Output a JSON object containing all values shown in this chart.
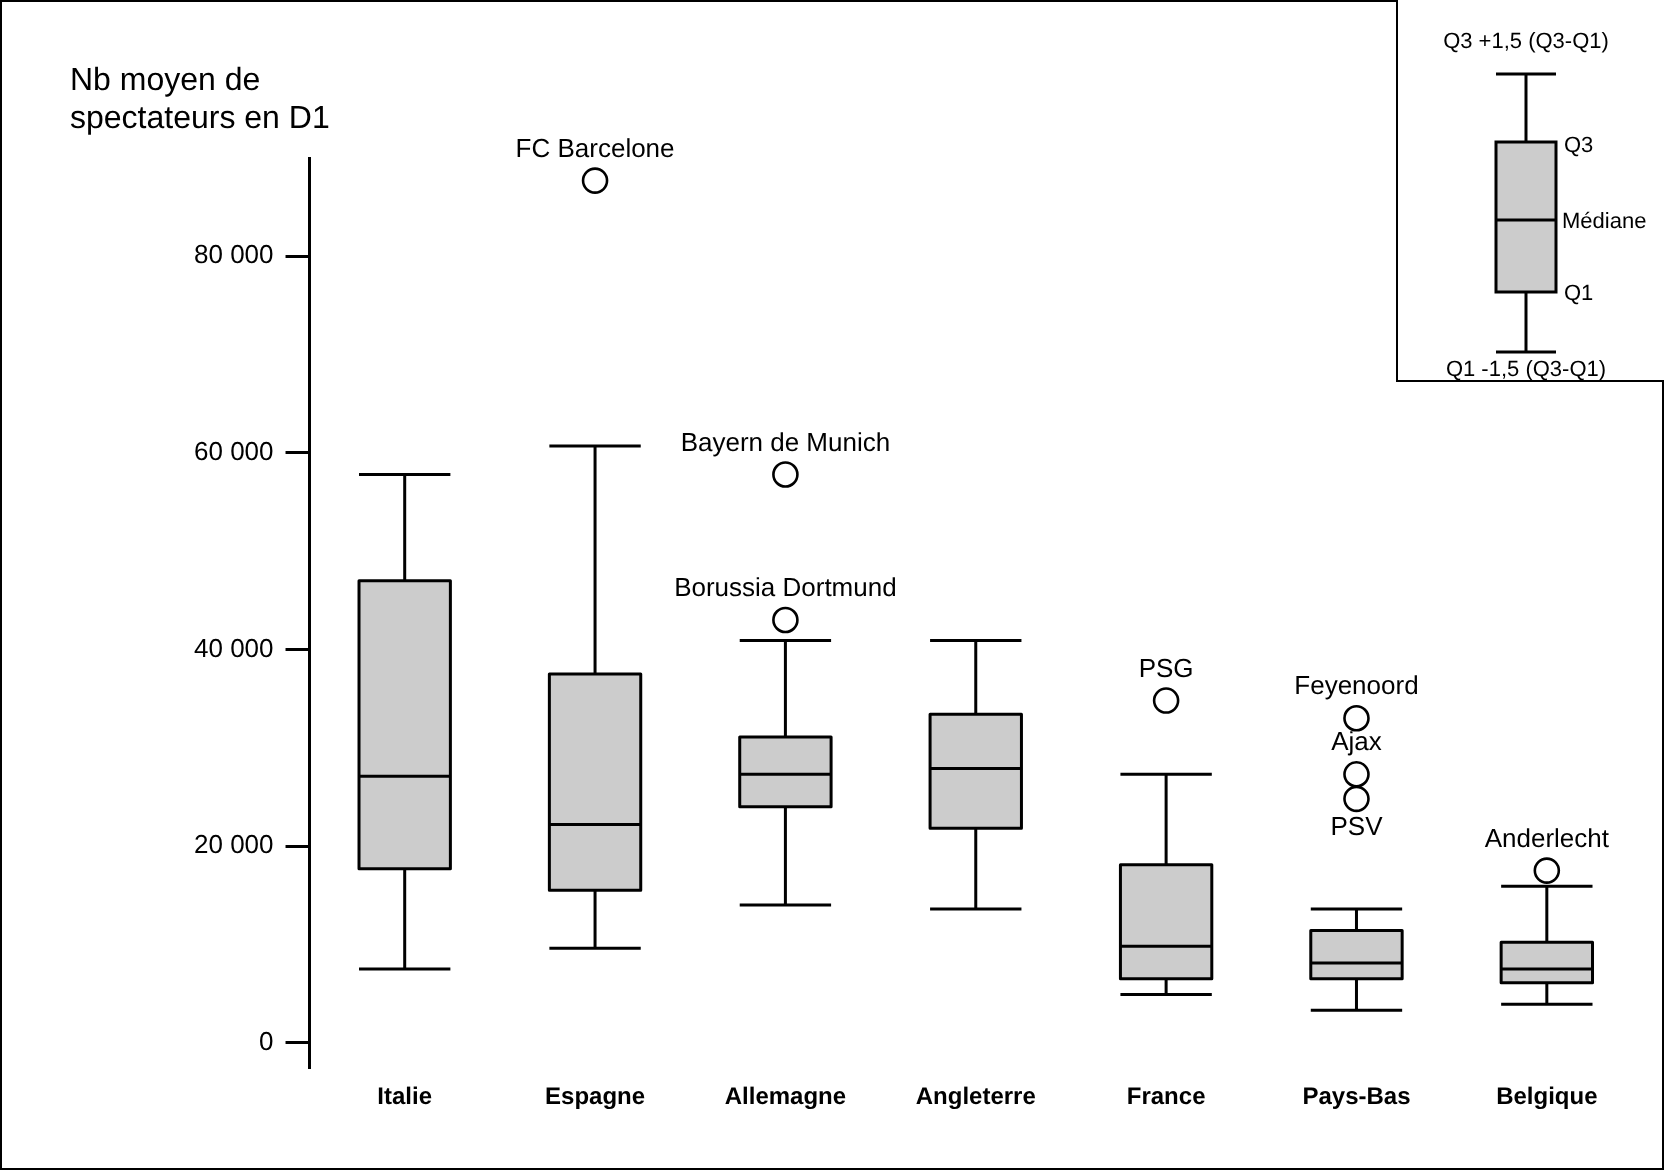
{
  "chart_data": {
    "type": "box",
    "ylabel": "Nb moyen de spectateurs en D1",
    "categories": [
      "Italie",
      "Espagne",
      "Allemagne",
      "Angleterre",
      "France",
      "Pays-Bas",
      "Belgique"
    ],
    "boxes": [
      {
        "low": 7500,
        "q1": 17700,
        "median": 27100,
        "q3": 47000,
        "high": 57800
      },
      {
        "low": 9600,
        "q1": 15500,
        "median": 22200,
        "q3": 37500,
        "high": 60700,
        "outliers": [
          87700
        ]
      },
      {
        "low": 14000,
        "q1": 24000,
        "median": 27300,
        "q3": 31100,
        "high": 40900,
        "outliers": [
          57800,
          43000
        ]
      },
      {
        "low": 13600,
        "q1": 21800,
        "median": 27900,
        "q3": 33400,
        "high": 40900
      },
      {
        "low": 4900,
        "q1": 6500,
        "median": 9800,
        "q3": 18100,
        "high": 27300,
        "outliers": [
          34800
        ]
      },
      {
        "low": 3300,
        "q1": 6500,
        "median": 8100,
        "q3": 11400,
        "high": 13600,
        "outliers": [
          33000,
          27300,
          24800
        ]
      },
      {
        "low": 3900,
        "q1": 6100,
        "median": 7500,
        "q3": 10200,
        "high": 15900,
        "outliers": [
          17500
        ]
      }
    ],
    "color": "#cccccc",
    "marker": "circle",
    "grid": false,
    "legend": false,
    "ylim": [
      -2500,
      90000
    ],
    "yticks": [
      0,
      {
        "value": 20000,
        "label": "20 000"
      },
      {
        "value": 40000,
        "label": "40 000"
      },
      {
        "value": 60000,
        "label": "60 000"
      },
      {
        "value": 80000,
        "label": "80 000"
      }
    ],
    "annotations": [
      "FC Barcelone",
      "Bayern de Munich",
      "Borussia Dortmund",
      "PSG",
      "Feyenoord",
      "Ajax",
      "PSV",
      "Anderlecht",
      "Q3 +1,5 (Q3-Q1)",
      "Q3",
      "Médiane",
      "Q1",
      "Q1 -1,5 (Q3-Q1)"
    ]
  }
}
